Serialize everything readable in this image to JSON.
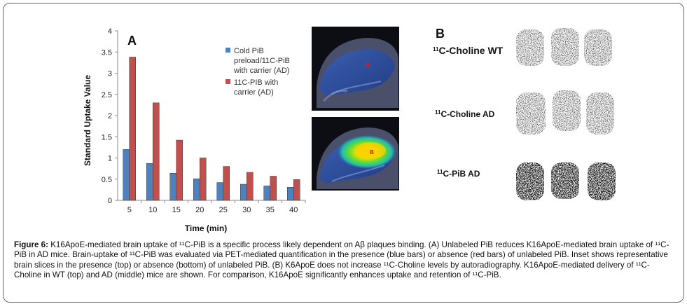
{
  "chart_data": {
    "type": "bar",
    "panel_label": "A",
    "categories": [
      "5",
      "10",
      "15",
      "20",
      "25",
      "30",
      "35",
      "40"
    ],
    "series": [
      {
        "name": "Cold PiB preload/11C-PiB with carrier (AD)",
        "color": "#4f81bd",
        "values": [
          1.2,
          0.87,
          0.64,
          0.51,
          0.42,
          0.38,
          0.34,
          0.31
        ]
      },
      {
        "name": "11C-PIB with carrier (AD)",
        "color": "#c0504d",
        "values": [
          3.38,
          2.3,
          1.42,
          1.0,
          0.8,
          0.66,
          0.57,
          0.49
        ]
      }
    ],
    "xlabel": "Time (min)",
    "ylabel": "Standard Uptake Value",
    "ylim": [
      0,
      4
    ],
    "yticks": [
      "0",
      "0.5",
      "1",
      "1.5",
      "2",
      "2.5",
      "3",
      "3.5",
      "4"
    ],
    "grid": false,
    "legend": {
      "placement": "top-right",
      "lines_series1": [
        "Cold PiB",
        "preload/11C-PiB",
        "with carrier (AD)"
      ],
      "lines_series2": [
        "11C-PIB with",
        "carrier (AD)"
      ]
    }
  },
  "inset": {
    "top_label": "B",
    "bottom_label": "B"
  },
  "panel_b": {
    "letter": "B",
    "rows": [
      {
        "sup": "11",
        "text": "C-Choline WT"
      },
      {
        "sup": "11",
        "text": "C-Choline AD"
      },
      {
        "sup": "11",
        "text": "C-PiB AD"
      }
    ]
  },
  "caption": {
    "label": "Figure 6:",
    "text": "K16ApoE-mediated brain uptake of ¹¹C-PiB is a specific process likely dependent on Aβ plaques binding. (A) Unlabeled PiB reduces K16ApoE-mediated brain uptake of ¹¹C-PiB in AD mice. Brain-uptake of ¹¹C-PiB was evaluated via PET-mediated quantification in the presence (blue bars) or absence (red bars) of unlabeled PiB. Inset shows representative brain slices in the presence (top) or absence (bottom) of unlabeled PiB. (B) K6ApoE does not increase ¹¹C-Choline levels by autoradiography. K16ApoE-mediated delivery of ¹¹C-Choline in WT (top) and AD (middle) mice are shown. For comparison, K16ApoE significantly enhances uptake and retention of ¹¹C-PiB."
  }
}
